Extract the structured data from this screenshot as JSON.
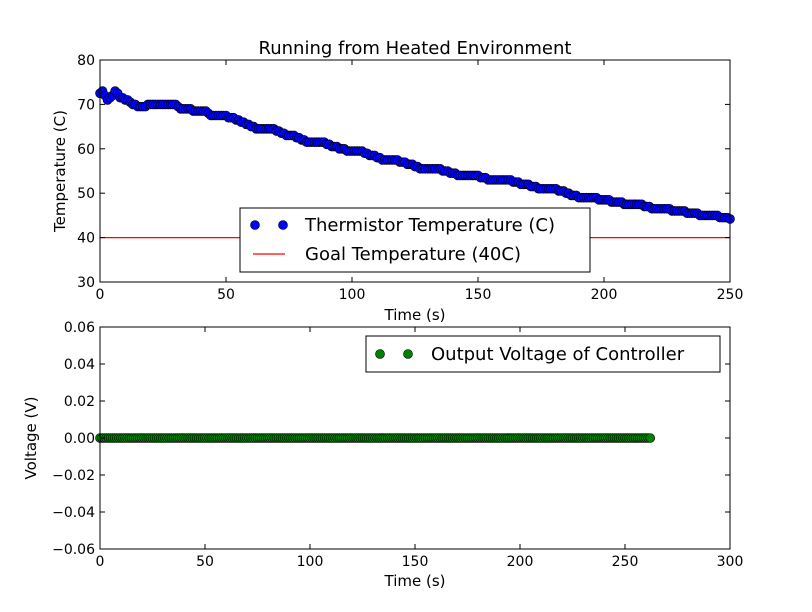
{
  "chart_data": [
    {
      "type": "scatter",
      "title": "Running from Heated Environment",
      "xlabel": "Time (s)",
      "ylabel": "Temperature (C)",
      "xlim": [
        0,
        250
      ],
      "ylim": [
        30,
        80
      ],
      "xticks": [
        "0",
        "50",
        "100",
        "150",
        "200",
        "250"
      ],
      "yticks": [
        "30",
        "40",
        "50",
        "60",
        "70",
        "80"
      ],
      "legend_position": "lower-center",
      "series": [
        {
          "name": "Thermistor Temperature (C)",
          "style": "markers",
          "color": "#0000ff",
          "points": [
            [
              0,
              72.5
            ],
            [
              1,
              73.2
            ],
            [
              2,
              72.0
            ],
            [
              3,
              71.2
            ],
            [
              5,
              71.8
            ],
            [
              6,
              73.0
            ],
            [
              7,
              72.4
            ],
            [
              8,
              71.5
            ],
            [
              10,
              71.2
            ],
            [
              12,
              70.4
            ],
            [
              15,
              69.5
            ],
            [
              18,
              69.3
            ],
            [
              20,
              70.2
            ],
            [
              25,
              70.2
            ],
            [
              30,
              70.2
            ],
            [
              32,
              69.2
            ],
            [
              35,
              69.2
            ],
            [
              38,
              68.5
            ],
            [
              42,
              68.3
            ],
            [
              45,
              67.4
            ],
            [
              50,
              67.3
            ],
            [
              55,
              66.4
            ],
            [
              58,
              65.6
            ],
            [
              62,
              64.6
            ],
            [
              68,
              64.5
            ],
            [
              72,
              63.5
            ],
            [
              78,
              62.6
            ],
            [
              82,
              61.7
            ],
            [
              88,
              61.5
            ],
            [
              92,
              60.7
            ],
            [
              98,
              59.7
            ],
            [
              103,
              59.6
            ],
            [
              107,
              58.7
            ],
            [
              112,
              57.7
            ],
            [
              117,
              57.6
            ],
            [
              122,
              56.7
            ],
            [
              127,
              55.7
            ],
            [
              133,
              55.6
            ],
            [
              138,
              54.8
            ],
            [
              143,
              53.9
            ],
            [
              150,
              53.8
            ],
            [
              155,
              53.0
            ],
            [
              162,
              52.9
            ],
            [
              168,
              52.1
            ],
            [
              175,
              51.1
            ],
            [
              180,
              51.0
            ],
            [
              185,
              50.1
            ],
            [
              190,
              49.2
            ],
            [
              195,
              49.1
            ],
            [
              200,
              48.3
            ],
            [
              205,
              48.2
            ],
            [
              210,
              47.4
            ],
            [
              215,
              47.3
            ],
            [
              220,
              46.6
            ],
            [
              225,
              46.5
            ],
            [
              230,
              45.8
            ],
            [
              235,
              45.7
            ],
            [
              240,
              44.9
            ],
            [
              245,
              44.8
            ],
            [
              250,
              44.2
            ]
          ]
        },
        {
          "name": "Goal Temperature (40C)",
          "style": "line",
          "color": "#ff0000",
          "points": [
            [
              0,
              40
            ],
            [
              250,
              40
            ]
          ]
        }
      ]
    },
    {
      "type": "scatter",
      "title": "",
      "xlabel": "Time (s)",
      "ylabel": "Voltage (V)",
      "xlim": [
        0,
        300
      ],
      "ylim": [
        -0.06,
        0.06
      ],
      "xticks": [
        "0",
        "50",
        "100",
        "150",
        "200",
        "250",
        "300"
      ],
      "yticks": [
        "−0.06",
        "−0.04",
        "−0.02",
        "0.00",
        "0.02",
        "0.04",
        "0.06"
      ],
      "legend_position": "top-right",
      "series": [
        {
          "name": "Output Voltage of Controller",
          "style": "markers",
          "color": "#008000",
          "x_range": [
            0,
            262
          ],
          "y": 0.0
        }
      ]
    }
  ]
}
